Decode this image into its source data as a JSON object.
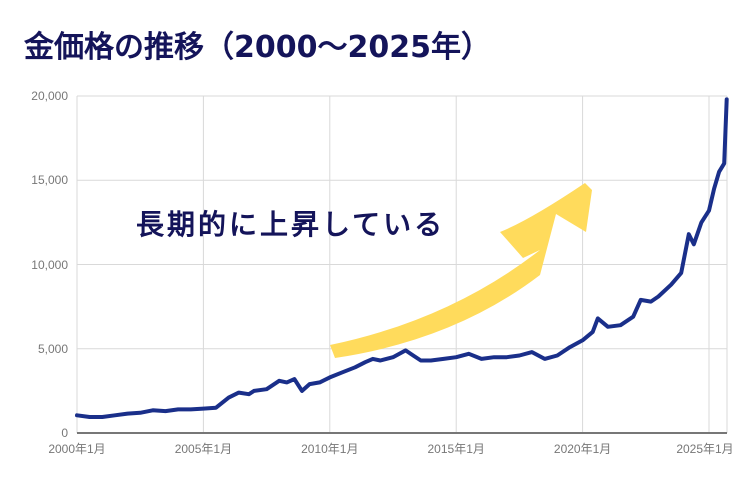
{
  "title": "金価格の推移（2000〜2025年）",
  "annotation": "長期的に上昇している",
  "colors": {
    "title": "#14145a",
    "line": "#1a2f8a",
    "grid": "#d9d9d9",
    "axis": "#777777",
    "arrow": "#ffdb5c"
  },
  "chart_data": {
    "type": "line",
    "title": "金価格の推移（2000〜2025年）",
    "xlabel": "",
    "ylabel": "",
    "ylim": [
      0,
      20000
    ],
    "xlim": [
      2000.0,
      2025.7
    ],
    "grid": true,
    "legend": "none",
    "yticks": [
      "0",
      "5,000",
      "10,000",
      "15,000",
      "20,000"
    ],
    "ytick_values": [
      0,
      5000,
      10000,
      15000,
      20000
    ],
    "xticks": [
      "2000年1月",
      "2005年1月",
      "2010年1月",
      "2015年1月",
      "2020年1月",
      "2025年1月"
    ],
    "xtick_values": [
      2000,
      2005,
      2010,
      2015,
      2020,
      2025
    ],
    "annotations": [
      {
        "text": "長期的に上昇している",
        "type": "text"
      },
      {
        "type": "arrow",
        "description": "yellow upward arrow from ~2010 to ~2020"
      }
    ],
    "series": [
      {
        "name": "金価格",
        "x": [
          2000.0,
          2000.5,
          2001.0,
          2001.5,
          2002.0,
          2002.5,
          2003.0,
          2003.5,
          2004.0,
          2004.5,
          2005.0,
          2005.5,
          2006.0,
          2006.4,
          2006.8,
          2007.0,
          2007.5,
          2008.0,
          2008.3,
          2008.6,
          2008.9,
          2009.2,
          2009.6,
          2010.0,
          2010.5,
          2011.0,
          2011.4,
          2011.7,
          2012.0,
          2012.5,
          2013.0,
          2013.3,
          2013.6,
          2014.0,
          2014.5,
          2015.0,
          2015.5,
          2016.0,
          2016.5,
          2017.0,
          2017.5,
          2018.0,
          2018.5,
          2019.0,
          2019.5,
          2020.0,
          2020.4,
          2020.6,
          2021.0,
          2021.5,
          2022.0,
          2022.3,
          2022.7,
          2023.0,
          2023.5,
          2023.9,
          2024.2,
          2024.4,
          2024.7,
          2025.0,
          2025.2,
          2025.4,
          2025.6,
          2025.7
        ],
        "values": [
          1050,
          950,
          950,
          1050,
          1150,
          1200,
          1350,
          1300,
          1400,
          1400,
          1450,
          1500,
          2100,
          2400,
          2300,
          2500,
          2600,
          3100,
          3000,
          3200,
          2500,
          2900,
          3000,
          3300,
          3600,
          3900,
          4200,
          4400,
          4300,
          4500,
          4900,
          4600,
          4300,
          4300,
          4400,
          4500,
          4700,
          4400,
          4500,
          4500,
          4600,
          4800,
          4400,
          4600,
          5100,
          5500,
          6000,
          6800,
          6300,
          6400,
          6900,
          7900,
          7800,
          8100,
          8800,
          9500,
          11800,
          11200,
          12500,
          13200,
          14500,
          15500,
          16000,
          19800
        ]
      }
    ]
  }
}
